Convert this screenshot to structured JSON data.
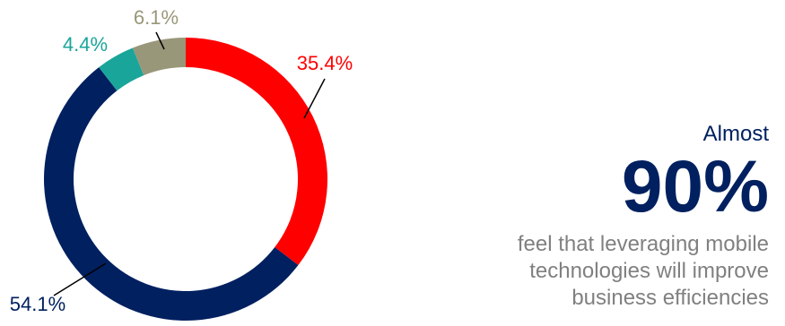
{
  "chart_data": {
    "type": "pie",
    "donut": true,
    "slices": [
      {
        "label": "35.4%",
        "value": 35.4,
        "color": "#FF0000"
      },
      {
        "label": "54.1%",
        "value": 54.1,
        "color": "#002060"
      },
      {
        "label": "4.4%",
        "value": 4.4,
        "color": "#1AA59A"
      },
      {
        "label": "6.1%",
        "value": 6.1,
        "color": "#99977A"
      }
    ]
  },
  "callout": {
    "intro": "Almost",
    "big_number": "90%",
    "description": "feel that leveraging mobile technologies will improve business efficiencies",
    "accent_color": "#002060",
    "text_color": "#808080"
  }
}
